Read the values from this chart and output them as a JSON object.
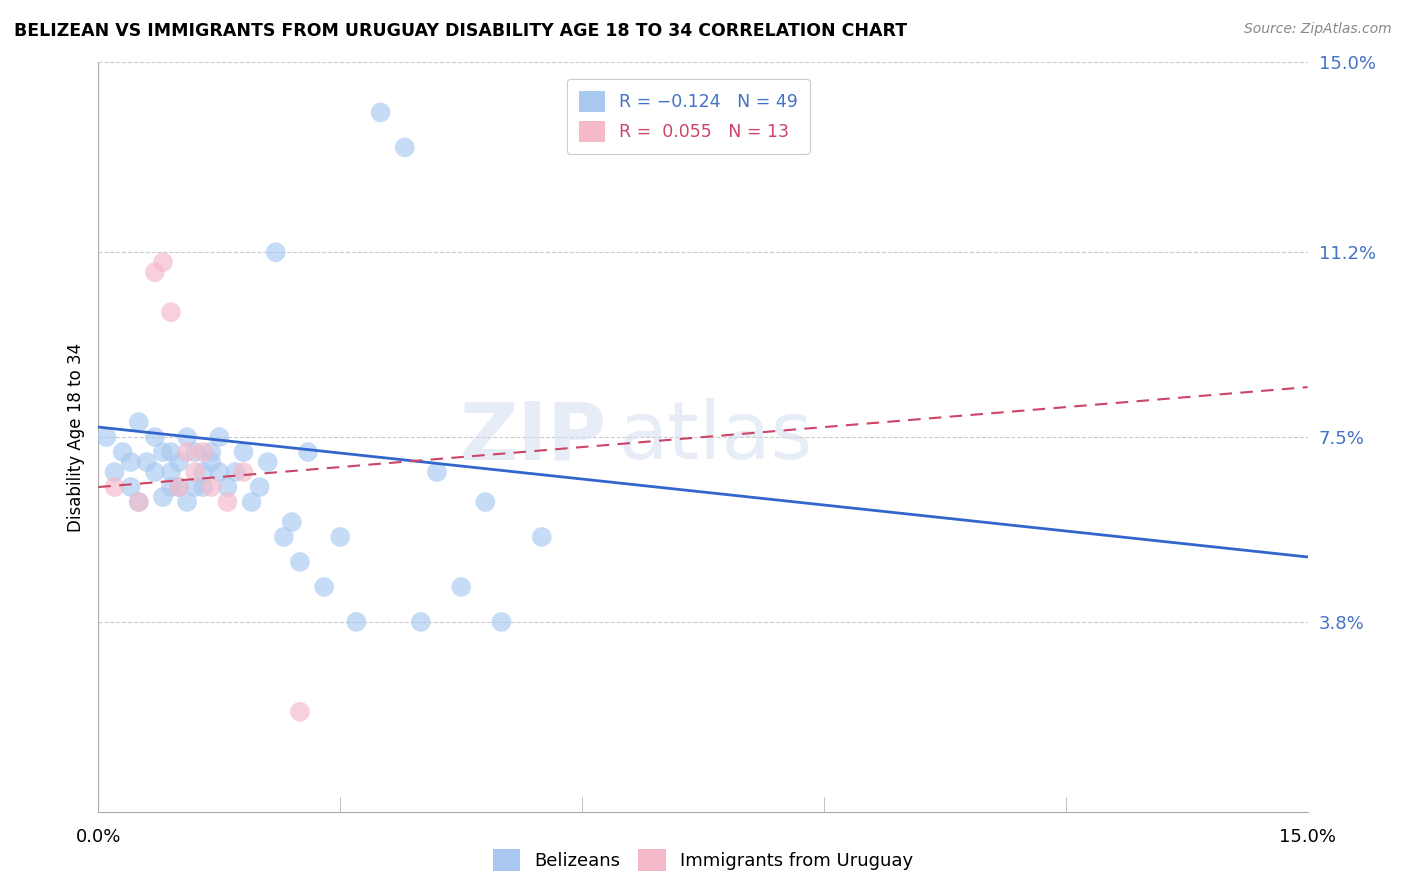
{
  "title": "BELIZEAN VS IMMIGRANTS FROM URUGUAY DISABILITY AGE 18 TO 34 CORRELATION CHART",
  "source": "Source: ZipAtlas.com",
  "ylabel": "Disability Age 18 to 34",
  "xlim": [
    0.0,
    0.15
  ],
  "ylim": [
    0.0,
    0.15
  ],
  "legend_r1": "R = -0.124",
  "legend_n1": "N = 49",
  "legend_r2": "R =  0.055",
  "legend_n2": "N = 13",
  "color_blue": "#A8C8F0",
  "color_pink": "#F5B8C8",
  "line_color_blue": "#3366CC",
  "line_color_pink": "#CC4466",
  "watermark_zip": "ZIP",
  "watermark_atlas": "atlas",
  "blue_points_x": [
    0.001,
    0.002,
    0.003,
    0.004,
    0.004,
    0.005,
    0.005,
    0.006,
    0.007,
    0.007,
    0.008,
    0.008,
    0.009,
    0.009,
    0.009,
    0.01,
    0.01,
    0.011,
    0.011,
    0.012,
    0.012,
    0.013,
    0.013,
    0.014,
    0.014,
    0.015,
    0.015,
    0.016,
    0.017,
    0.018,
    0.019,
    0.02,
    0.021,
    0.022,
    0.023,
    0.024,
    0.025,
    0.026,
    0.028,
    0.03,
    0.032,
    0.035,
    0.038,
    0.04,
    0.042,
    0.045,
    0.048,
    0.05,
    0.055
  ],
  "blue_points_y": [
    0.075,
    0.068,
    0.072,
    0.065,
    0.07,
    0.062,
    0.078,
    0.07,
    0.068,
    0.075,
    0.063,
    0.072,
    0.065,
    0.068,
    0.072,
    0.065,
    0.07,
    0.062,
    0.075,
    0.065,
    0.072,
    0.065,
    0.068,
    0.07,
    0.072,
    0.068,
    0.075,
    0.065,
    0.068,
    0.072,
    0.062,
    0.065,
    0.07,
    0.112,
    0.055,
    0.058,
    0.05,
    0.072,
    0.045,
    0.055,
    0.038,
    0.14,
    0.133,
    0.038,
    0.068,
    0.045,
    0.062,
    0.038,
    0.055
  ],
  "pink_points_x": [
    0.002,
    0.005,
    0.007,
    0.008,
    0.009,
    0.01,
    0.011,
    0.012,
    0.013,
    0.014,
    0.016,
    0.018,
    0.025
  ],
  "pink_points_y": [
    0.065,
    0.062,
    0.108,
    0.11,
    0.1,
    0.065,
    0.072,
    0.068,
    0.072,
    0.065,
    0.062,
    0.068,
    0.02
  ],
  "blue_trend_x": [
    0.0,
    0.15
  ],
  "blue_trend_y": [
    0.077,
    0.051
  ],
  "pink_trend_x": [
    0.0,
    0.15
  ],
  "pink_trend_y": [
    0.065,
    0.085
  ]
}
